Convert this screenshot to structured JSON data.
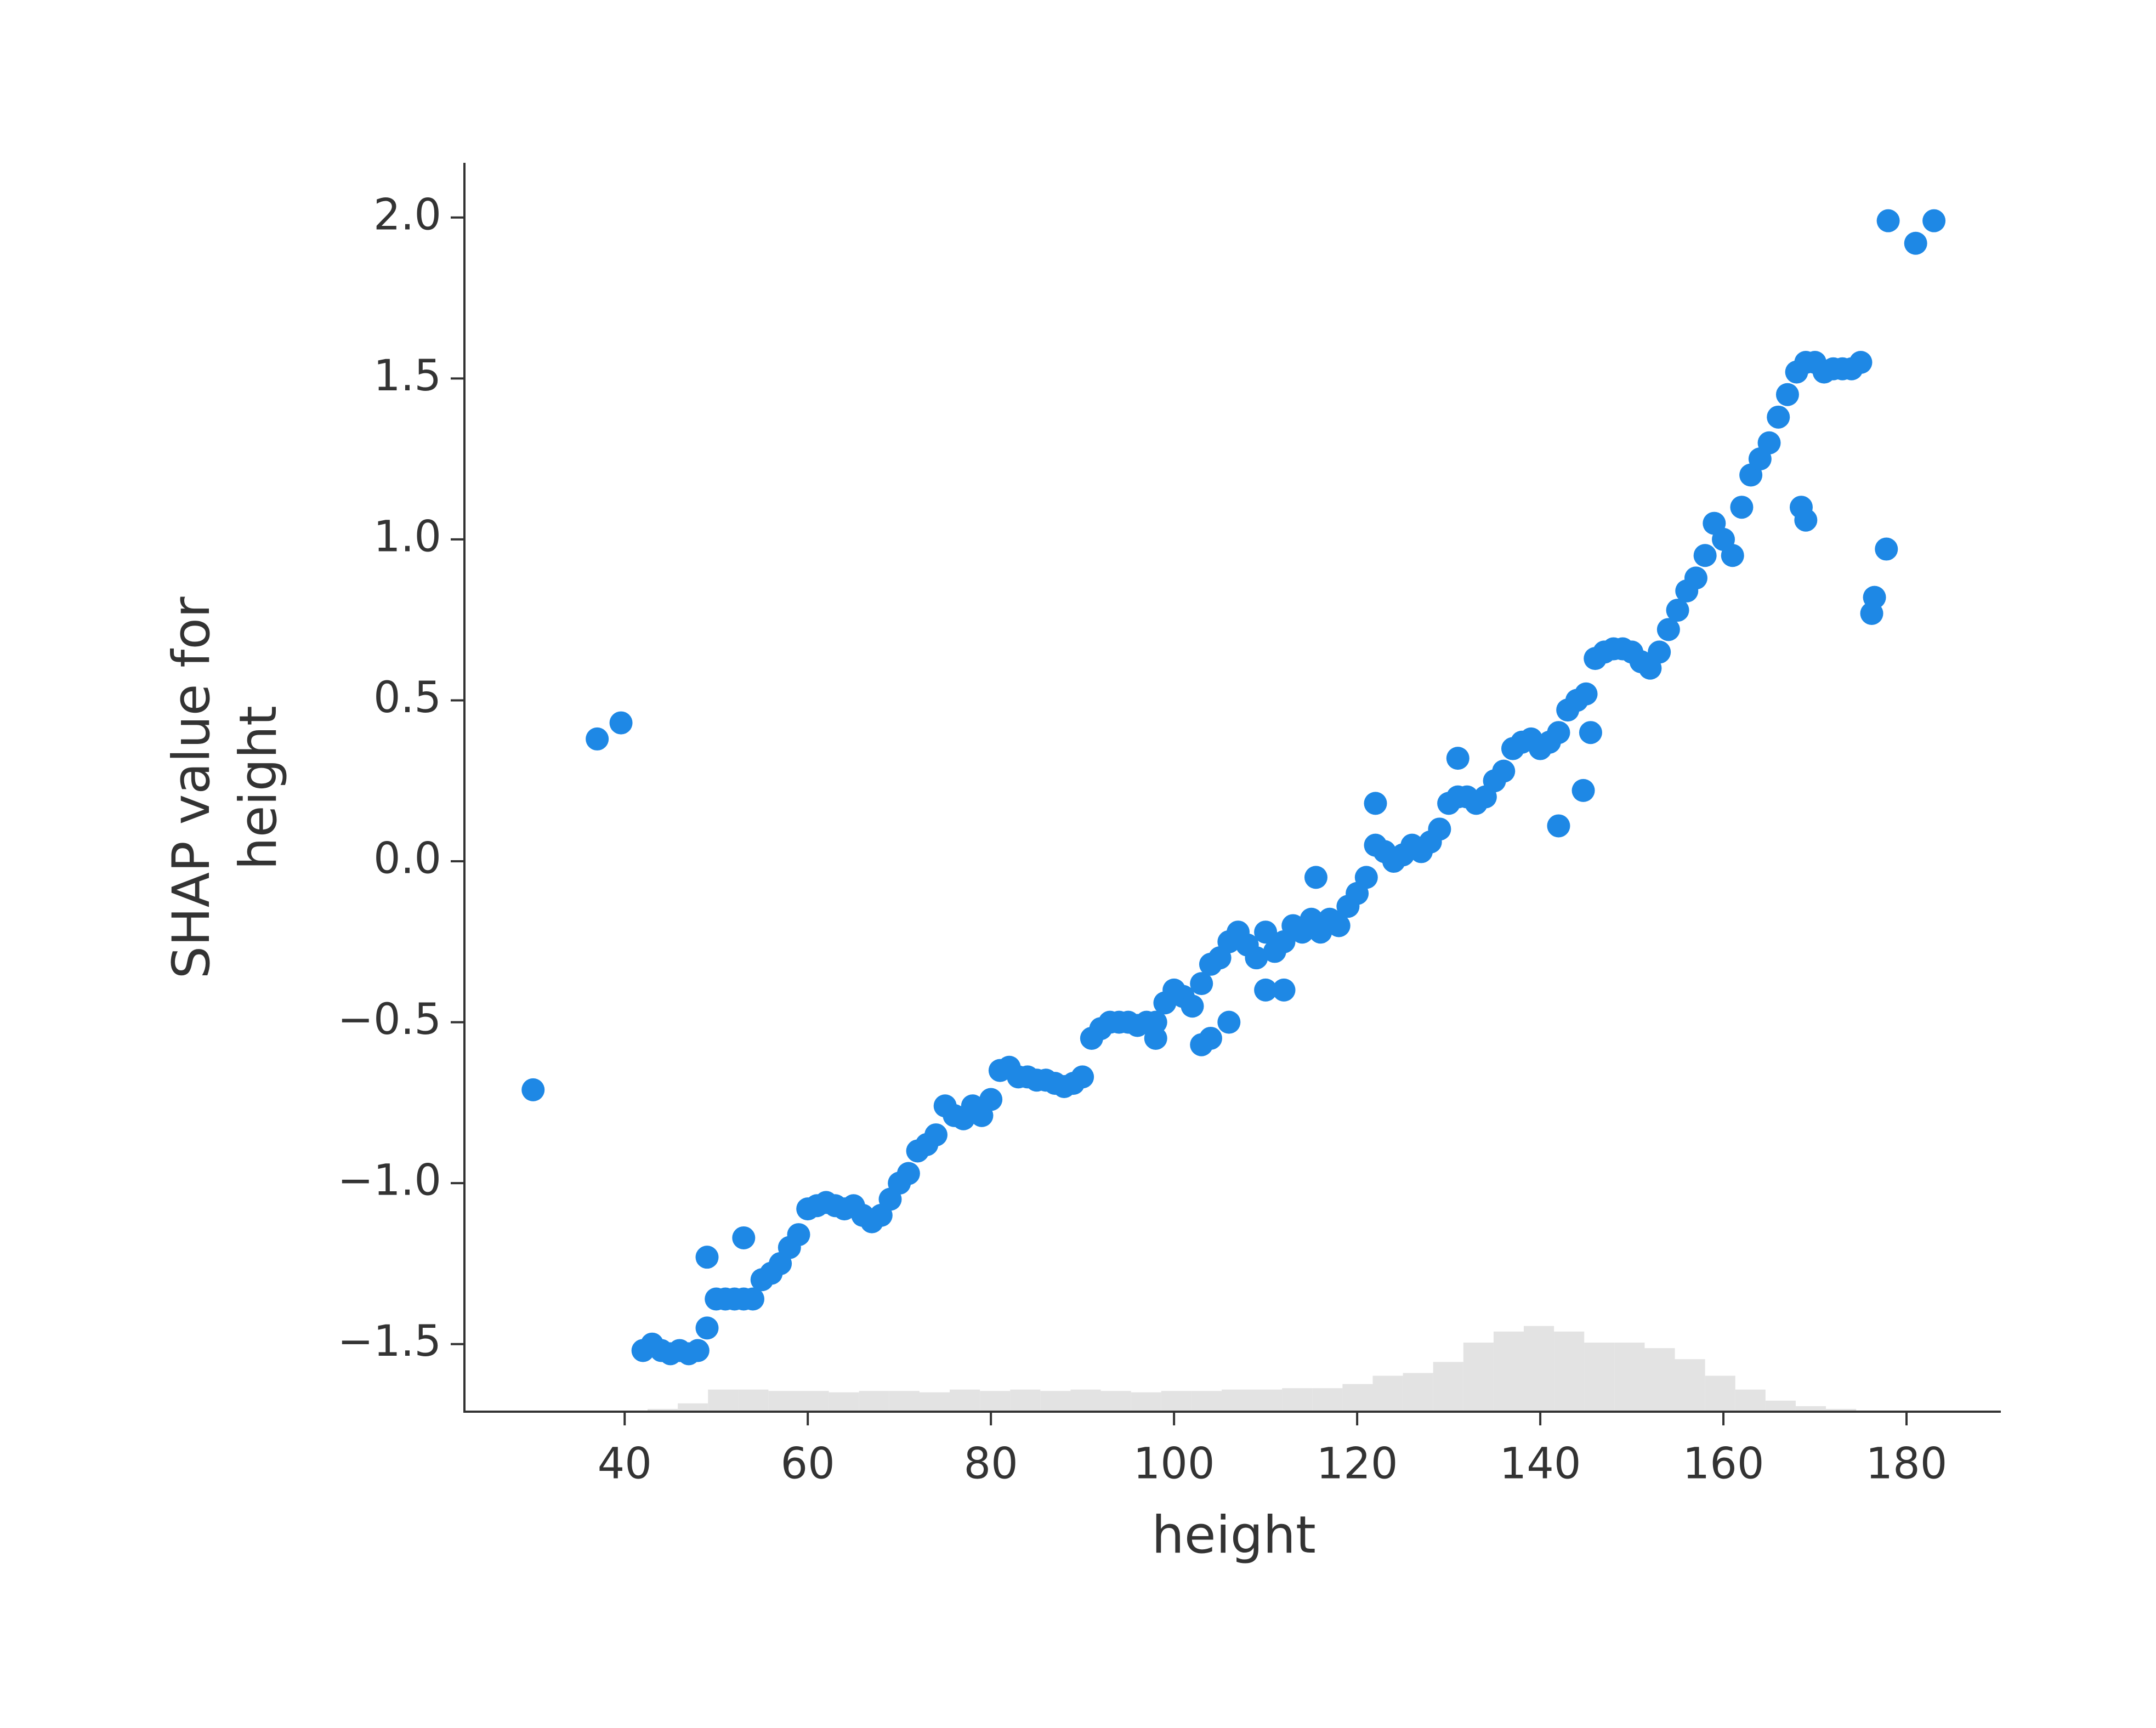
{
  "chart_data": {
    "type": "scatter",
    "xlabel": "height",
    "ylabel": [
      "SHAP value for",
      "height"
    ],
    "xlim": [
      22.5,
      190.3
    ],
    "ylim": [
      -1.71,
      2.17
    ],
    "xticks": [
      40,
      60,
      80,
      100,
      120,
      140,
      160,
      180
    ],
    "yticks": [
      {
        "value": -1.5,
        "label": "−1.5"
      },
      {
        "value": -1.0,
        "label": "−1.0"
      },
      {
        "value": -0.5,
        "label": "−0.5"
      },
      {
        "value": 0.0,
        "label": "0.0"
      },
      {
        "value": 0.5,
        "label": "0.5"
      },
      {
        "value": 1.0,
        "label": "1.0"
      },
      {
        "value": 1.5,
        "label": "1.5"
      },
      {
        "value": 2.0,
        "label": "2.0"
      }
    ],
    "grid": false,
    "series": [
      {
        "color": "#1e88e5",
        "x": [
          30,
          37,
          39.6,
          178,
          181,
          183,
          177.8,
          176.5,
          176.2,
          142,
          144.7,
          145.5,
          115.5,
          122,
          131,
          49,
          53,
          169,
          168.5,
          104,
          103,
          98,
          110,
          112,
          106,
          42,
          43,
          44,
          45,
          46,
          47,
          48,
          49,
          50,
          51,
          52,
          53,
          54,
          55,
          56,
          57,
          58,
          59,
          60,
          61,
          62,
          63,
          64,
          65,
          66,
          67,
          68,
          69,
          70,
          71,
          72,
          73,
          74,
          75,
          76,
          77,
          78,
          79,
          80,
          81,
          82,
          83,
          84,
          85,
          86,
          87,
          88,
          89,
          90,
          91,
          92,
          93,
          94,
          95,
          96,
          97,
          98,
          99,
          100,
          101,
          102,
          103,
          104,
          105,
          106,
          107,
          108,
          109,
          110,
          111,
          112,
          113,
          114,
          115,
          116,
          117,
          118,
          119,
          120,
          121,
          122,
          123,
          124,
          125,
          126,
          127,
          128,
          129,
          130,
          131,
          132,
          133,
          134,
          135,
          136,
          137,
          138,
          139,
          140,
          141,
          142,
          143,
          144,
          145,
          146,
          147,
          148,
          149,
          150,
          151,
          152,
          153,
          154,
          155,
          156,
          157,
          158,
          159,
          160,
          161,
          162,
          163,
          164,
          165,
          166,
          167,
          168,
          169,
          170,
          171,
          172,
          173,
          174,
          175
        ],
        "values": [
          -0.71,
          0.38,
          0.43,
          1.99,
          1.92,
          1.99,
          0.97,
          0.82,
          0.77,
          0.11,
          0.22,
          0.4,
          -0.05,
          0.18,
          0.32,
          -1.23,
          -1.17,
          1.06,
          1.1,
          -0.55,
          -0.57,
          -0.55,
          -0.4,
          -0.4,
          -0.5,
          -1.52,
          -1.5,
          -1.52,
          -1.53,
          -1.52,
          -1.53,
          -1.52,
          -1.45,
          -1.36,
          -1.36,
          -1.36,
          -1.36,
          -1.36,
          -1.3,
          -1.28,
          -1.25,
          -1.2,
          -1.16,
          -1.08,
          -1.07,
          -1.06,
          -1.07,
          -1.08,
          -1.07,
          -1.1,
          -1.12,
          -1.1,
          -1.05,
          -1.0,
          -0.97,
          -0.9,
          -0.88,
          -0.85,
          -0.76,
          -0.79,
          -0.8,
          -0.76,
          -0.79,
          -0.74,
          -0.65,
          -0.64,
          -0.67,
          -0.67,
          -0.68,
          -0.68,
          -0.69,
          -0.7,
          -0.69,
          -0.67,
          -0.55,
          -0.52,
          -0.5,
          -0.5,
          -0.5,
          -0.51,
          -0.5,
          -0.5,
          -0.44,
          -0.4,
          -0.42,
          -0.45,
          -0.38,
          -0.32,
          -0.3,
          -0.25,
          -0.22,
          -0.26,
          -0.3,
          -0.22,
          -0.28,
          -0.25,
          -0.2,
          -0.22,
          -0.18,
          -0.22,
          -0.18,
          -0.2,
          -0.14,
          -0.1,
          -0.05,
          0.05,
          0.03,
          0.0,
          0.02,
          0.05,
          0.03,
          0.06,
          0.1,
          0.18,
          0.2,
          0.2,
          0.18,
          0.2,
          0.25,
          0.28,
          0.35,
          0.37,
          0.38,
          0.35,
          0.37,
          0.4,
          0.47,
          0.5,
          0.52,
          0.63,
          0.65,
          0.66,
          0.66,
          0.65,
          0.62,
          0.6,
          0.65,
          0.72,
          0.78,
          0.84,
          0.88,
          0.95,
          1.05,
          1.0,
          0.95,
          1.1,
          1.2,
          1.25,
          1.3,
          1.38,
          1.45,
          1.52,
          1.55,
          1.55,
          1.52,
          1.53,
          1.53,
          1.53,
          1.55
        ]
      }
    ],
    "histogram": {
      "color": "#e3e3e3",
      "bins": [
        42.5,
        45.8,
        49.1,
        52.4,
        55.7,
        59,
        62.3,
        65.6,
        68.9,
        72.2,
        75.5,
        78.8,
        82.1,
        85.4,
        88.7,
        92,
        95.3,
        98.6,
        101.9,
        105.2,
        108.5,
        111.8,
        115.1,
        118.4,
        121.7,
        125,
        128.3,
        131.6,
        134.9,
        138.2,
        141.5,
        144.8,
        148.1,
        151.4,
        154.7,
        158,
        161.3,
        164.6,
        167.9,
        171.2,
        174.5
      ],
      "counts": [
        2,
        6,
        16,
        16,
        15,
        15,
        14,
        15,
        15,
        14,
        16,
        15,
        16,
        15,
        16,
        15,
        14,
        15,
        15,
        16,
        16,
        17,
        17,
        20,
        26,
        28,
        36,
        50,
        58,
        62,
        58,
        50,
        50,
        46,
        38,
        26,
        16,
        8,
        4,
        2
      ],
      "y2lim": [
        0,
        904
      ]
    }
  }
}
